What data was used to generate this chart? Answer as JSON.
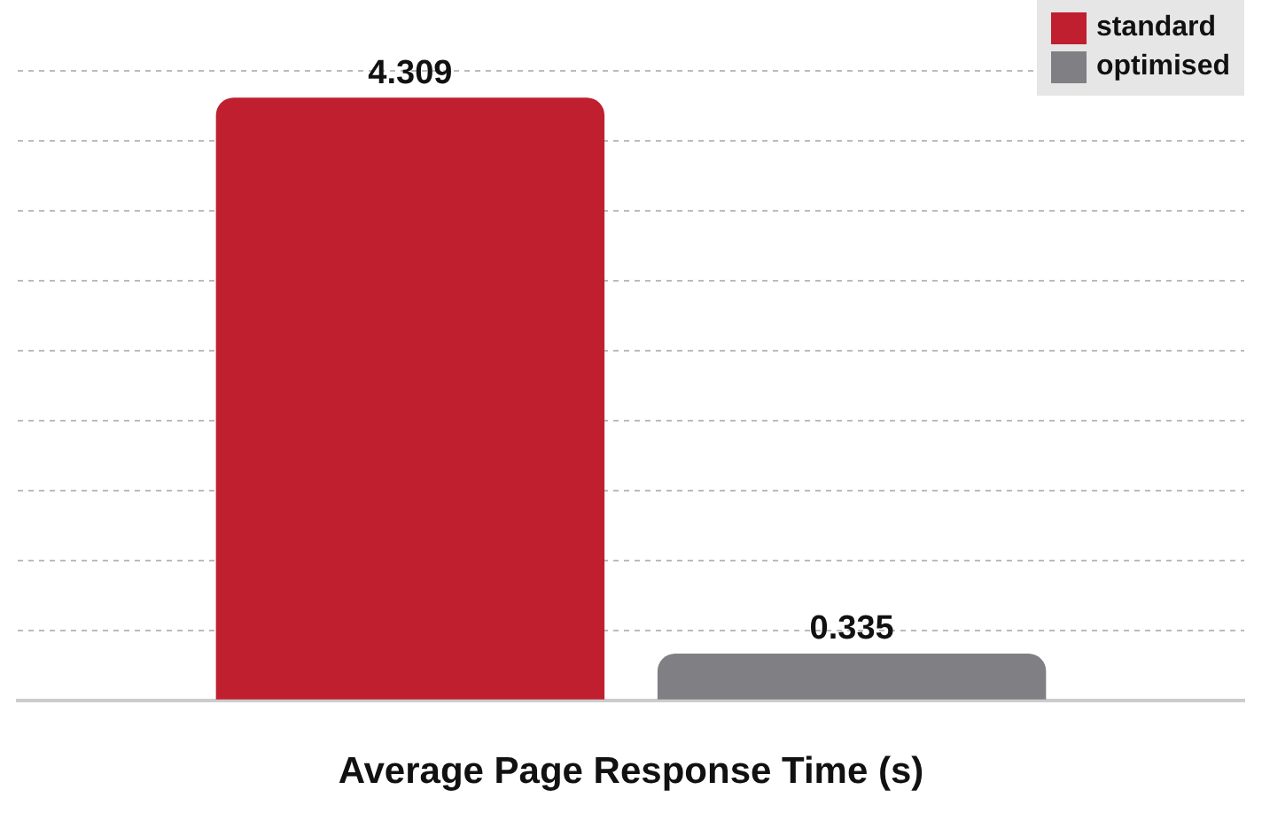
{
  "chart_data": {
    "type": "bar",
    "xlabel": "Average Page Response Time (s)",
    "categories": [
      null
    ],
    "series": [
      {
        "name": "standard",
        "color": "#c01f2f",
        "values": [
          4.309
        ]
      },
      {
        "name": "optimised",
        "color": "#808084",
        "values": [
          0.335
        ]
      }
    ],
    "grid": "y",
    "legend": "top right",
    "data_labels": true
  }
}
